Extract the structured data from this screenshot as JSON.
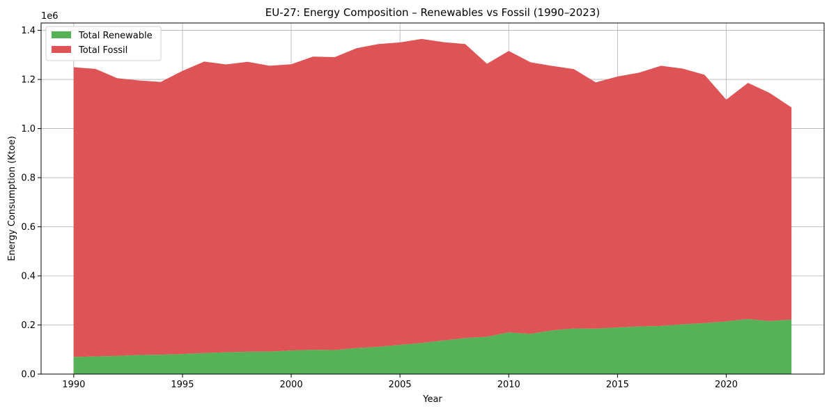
{
  "chart_data": {
    "type": "area",
    "stacked": true,
    "title": "EU-27: Energy Composition – Renewables vs Fossil (1990–2023)",
    "xlabel": "Year",
    "ylabel": "Energy Consumption (Ktoe)",
    "y_offset_label": "1e6",
    "xlim": [
      1988.5,
      2024.5
    ],
    "ylim": [
      0,
      1430000
    ],
    "xticks": [
      1990,
      1995,
      2000,
      2005,
      2010,
      2015,
      2020
    ],
    "xtick_labels": [
      "1990",
      "1995",
      "2000",
      "2005",
      "2010",
      "2015",
      "2020"
    ],
    "yticks": [
      0,
      200000,
      400000,
      600000,
      800000,
      1000000,
      1200000,
      1400000
    ],
    "ytick_labels": [
      "0.0",
      "0.2",
      "0.4",
      "0.6",
      "0.8",
      "1.0",
      "1.2",
      "1.4"
    ],
    "grid": true,
    "legend_position": "top-left",
    "x": [
      1990,
      1991,
      1992,
      1993,
      1994,
      1995,
      1996,
      1997,
      1998,
      1999,
      2000,
      2001,
      2002,
      2003,
      2004,
      2005,
      2006,
      2007,
      2008,
      2009,
      2010,
      2011,
      2012,
      2013,
      2014,
      2015,
      2016,
      2017,
      2018,
      2019,
      2020,
      2021,
      2022,
      2023
    ],
    "series": [
      {
        "name": "Total Renewable",
        "color": "#55b256",
        "values": [
          70000,
          72000,
          74000,
          78000,
          79000,
          82000,
          86000,
          89000,
          91000,
          92000,
          96000,
          99000,
          98000,
          106000,
          111000,
          119000,
          127000,
          137000,
          147000,
          152000,
          170000,
          164000,
          178000,
          186000,
          185000,
          190000,
          194000,
          196000,
          203000,
          208000,
          215000,
          224000,
          216000,
          222000
        ]
      },
      {
        "name": "Total Fossil",
        "color": "#de5355",
        "values": [
          1180000,
          1171000,
          1131000,
          1118000,
          1111000,
          1153000,
          1187000,
          1172000,
          1181000,
          1164000,
          1166000,
          1194000,
          1193000,
          1221000,
          1233000,
          1232000,
          1238000,
          1215000,
          1197000,
          1112000,
          1146000,
          1106000,
          1077000,
          1056000,
          1003000,
          1022000,
          1034000,
          1060000,
          1041000,
          1011000,
          903000,
          962000,
          929000,
          864000
        ]
      }
    ]
  }
}
